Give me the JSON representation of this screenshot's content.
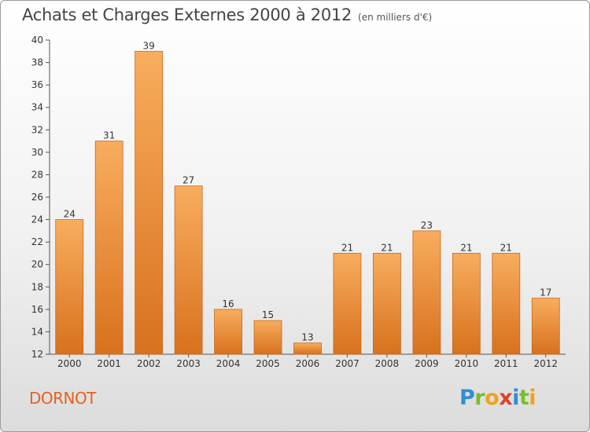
{
  "header": {
    "title": "Achats et Charges Externes 2000 à 2012",
    "unit": "(en milliers d'€)"
  },
  "commune": "DORNOT",
  "logo": {
    "letters": [
      "P",
      "r",
      "o",
      "x",
      "i",
      "t",
      "i"
    ]
  },
  "colors": {
    "bar_light": "#f7a959",
    "bar_dark": "#d9731f",
    "bar_edge": "#c96b20",
    "commune": "#e8601c"
  },
  "chart_data": {
    "type": "bar",
    "categories": [
      "2000",
      "2001",
      "2002",
      "2003",
      "2004",
      "2005",
      "2006",
      "2007",
      "2008",
      "2009",
      "2010",
      "2011",
      "2012"
    ],
    "values": [
      24,
      31,
      39,
      27,
      16,
      15,
      13,
      21,
      21,
      23,
      21,
      21,
      17
    ],
    "title": "Achats et Charges Externes 2000 à 2012",
    "ylim": [
      12,
      40
    ],
    "yticks": [
      12,
      14,
      16,
      18,
      20,
      22,
      24,
      26,
      28,
      30,
      32,
      34,
      36,
      38,
      40
    ],
    "grid": false,
    "legend": "none"
  }
}
